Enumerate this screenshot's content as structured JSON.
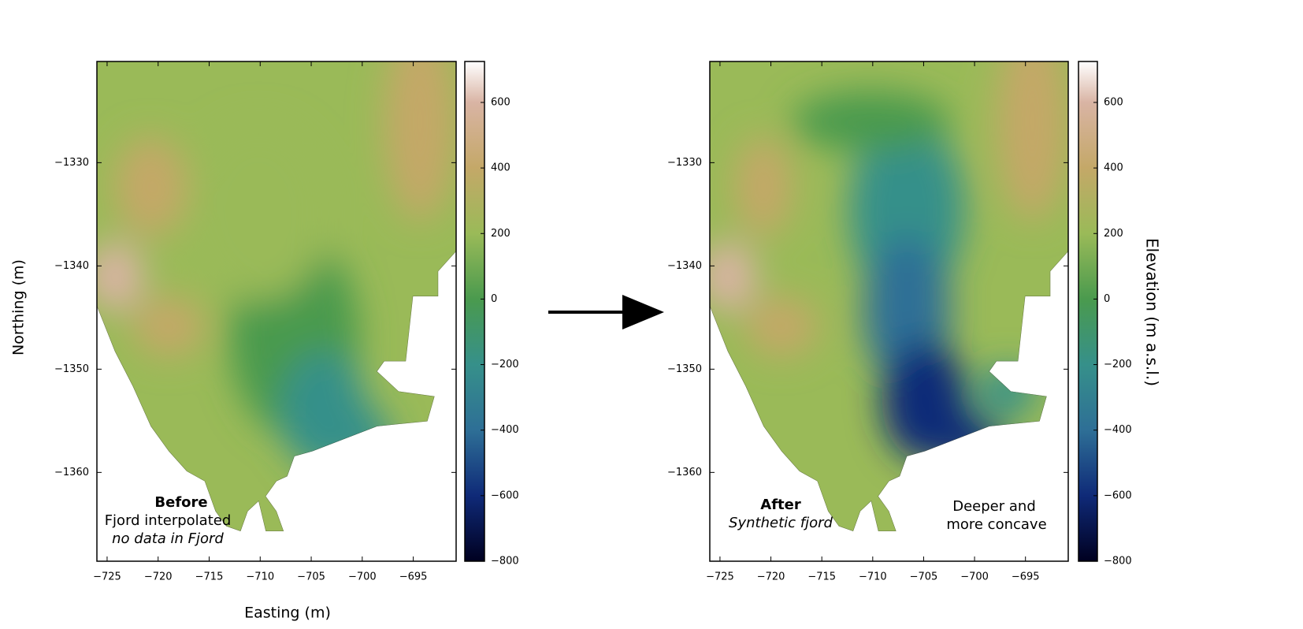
{
  "chart_data": [
    {
      "type": "map",
      "xlabel": "Easting (m)",
      "ylabel": "Northing (m)",
      "xlim": [
        -726,
        -690.8
      ],
      "xticks": [
        {
          "value": -725,
          "label": "−725"
        },
        {
          "value": -720,
          "label": "−720"
        },
        {
          "value": -715,
          "label": "−715"
        },
        {
          "value": -710,
          "label": "−710"
        },
        {
          "value": -705,
          "label": "−705"
        },
        {
          "value": -700,
          "label": "−700"
        },
        {
          "value": -695,
          "label": "−695"
        }
      ],
      "ylim": [
        -1368.6,
        -1320.2
      ],
      "yticks": [
        {
          "value": -1330,
          "label": "−1330"
        },
        {
          "value": -1340,
          "label": "−1340"
        },
        {
          "value": -1350,
          "label": "−1350"
        },
        {
          "value": -1360,
          "label": "−1360"
        }
      ],
      "colorbar": {
        "lim": [
          -800,
          725
        ],
        "ticks": [
          600,
          400,
          200,
          0,
          {
            "value": -200,
            "label": "−200"
          },
          {
            "value": -400,
            "label": "−400"
          },
          {
            "value": -600,
            "label": "−600"
          },
          {
            "value": -800,
            "label": "−800"
          }
        ]
      },
      "annotation": [
        "Before",
        "Fjord interpolated",
        "no data in Fjord"
      ]
    },
    {
      "type": "map",
      "xlim": [
        -726,
        -690.8
      ],
      "xticks": [
        {
          "value": -725,
          "label": "−725"
        },
        {
          "value": -720,
          "label": "−720"
        },
        {
          "value": -715,
          "label": "−715"
        },
        {
          "value": -710,
          "label": "−710"
        },
        {
          "value": -705,
          "label": "−705"
        },
        {
          "value": -700,
          "label": "−700"
        },
        {
          "value": -695,
          "label": "−695"
        }
      ],
      "ylim": [
        -1368.6,
        -1320.2
      ],
      "yticks": [
        {
          "value": -1330,
          "label": "−1330"
        },
        {
          "value": -1340,
          "label": "−1340"
        },
        {
          "value": -1350,
          "label": "−1350"
        },
        {
          "value": -1360,
          "label": "−1360"
        }
      ],
      "colorbar": {
        "lim": [
          -800,
          725
        ],
        "label": "Elevation (m a.s.l.)",
        "ticks": [
          600,
          400,
          200,
          0,
          {
            "value": -200,
            "label": "−200"
          },
          {
            "value": -400,
            "label": "−400"
          },
          {
            "value": -600,
            "label": "−600"
          },
          {
            "value": -800,
            "label": "−800"
          }
        ]
      },
      "annotation": [
        "After",
        "Synthetic fjord"
      ],
      "annotation2": [
        "Deeper and",
        "more concave"
      ]
    }
  ],
  "colormap": [
    {
      "value": -800,
      "color": "#000020"
    },
    {
      "value": -600,
      "color": "#0f2a78"
    },
    {
      "value": -400,
      "color": "#2e6f96"
    },
    {
      "value": -200,
      "color": "#36908a"
    },
    {
      "value": 0,
      "color": "#4a9a4e"
    },
    {
      "value": 200,
      "color": "#9aba58"
    },
    {
      "value": 400,
      "color": "#c4a868"
    },
    {
      "value": 600,
      "color": "#d9b4a4"
    },
    {
      "value": 725,
      "color": "#ffffff"
    }
  ]
}
